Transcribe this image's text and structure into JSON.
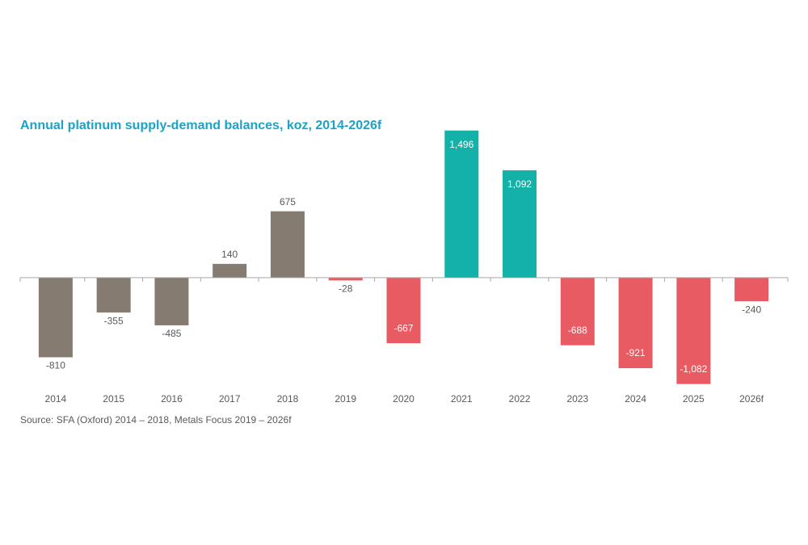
{
  "chart_data": {
    "type": "bar",
    "title": "Annual platinum supply-demand balances, koz, 2014-2026f",
    "source": "Source: SFA (Oxford) 2014 – 2018,  Metals Focus 2019 – 2026f",
    "categories": [
      "2014",
      "2015",
      "2016",
      "2017",
      "2018",
      "2019",
      "2020",
      "2021",
      "2022",
      "2023",
      "2024",
      "2025",
      "2026f"
    ],
    "values": [
      -810,
      -355,
      -485,
      140,
      675,
      -28,
      -667,
      1496,
      1092,
      -688,
      -921,
      -1082,
      -240
    ],
    "value_labels": [
      "-810",
      "-355",
      "-485",
      "140",
      "675",
      "-28",
      "-667",
      "1,496",
      "1,092",
      "-688",
      "-921",
      "-1,082",
      "-240"
    ],
    "colors": [
      "#857b71",
      "#857b71",
      "#857b71",
      "#857b71",
      "#857b71",
      "#e95b62",
      "#e95b62",
      "#14b1a9",
      "#14b1a9",
      "#e95b62",
      "#e95b62",
      "#e95b62",
      "#e95b62"
    ],
    "ylim": [
      -1200,
      1600
    ]
  }
}
